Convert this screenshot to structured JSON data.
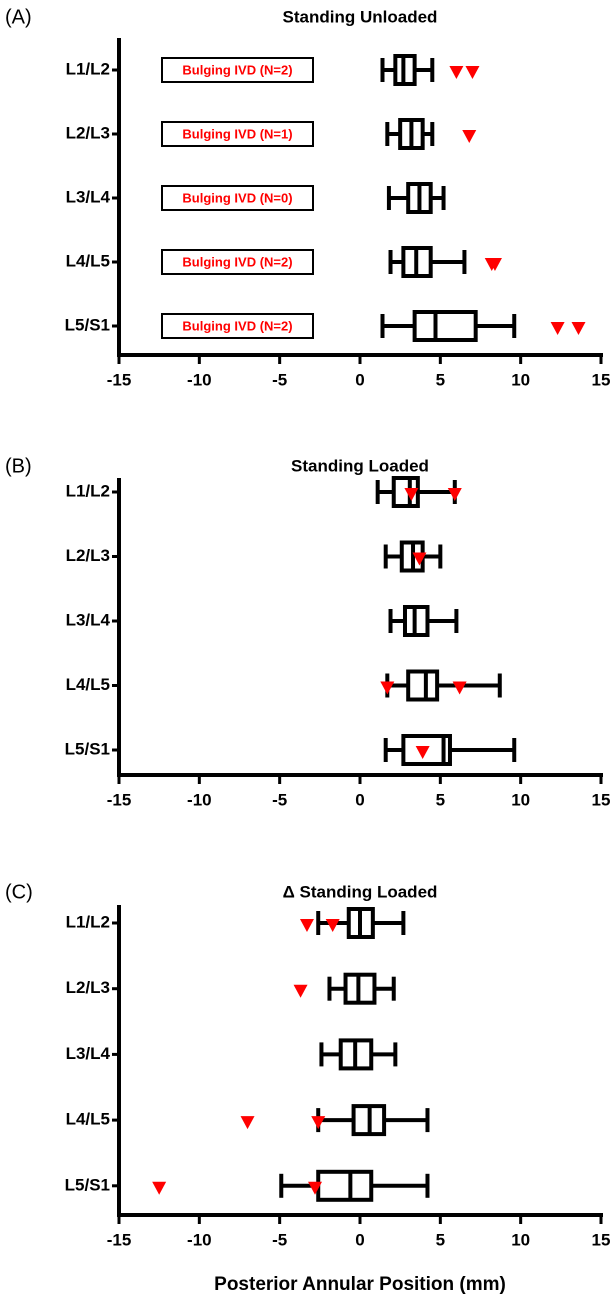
{
  "chart_data": [
    {
      "type": "box",
      "panel_label": "(A)",
      "title": "Standing Unloaded",
      "categories": [
        "L1/L2",
        "L2/L3",
        "L3/L4",
        "L4/L5",
        "L5/S1"
      ],
      "boxes": [
        {
          "min": 1.4,
          "q1": 2.2,
          "median": 2.7,
          "q3": 3.4,
          "max": 4.5,
          "outliers": [
            6.0,
            7.0
          ]
        },
        {
          "min": 1.7,
          "q1": 2.5,
          "median": 3.2,
          "q3": 3.9,
          "max": 4.5,
          "outliers": [
            6.8
          ]
        },
        {
          "min": 1.8,
          "q1": 3.0,
          "median": 3.7,
          "q3": 4.4,
          "max": 5.2,
          "outliers": []
        },
        {
          "min": 1.9,
          "q1": 2.7,
          "median": 3.5,
          "q3": 4.4,
          "max": 6.5,
          "outliers": [
            8.2,
            8.4
          ]
        },
        {
          "min": 1.4,
          "q1": 3.4,
          "median": 4.7,
          "q3": 7.2,
          "max": 9.6,
          "outliers": [
            12.3,
            13.6
          ]
        }
      ],
      "annotations": [
        "Bulging IVD (N=2)",
        "Bulging IVD (N=1)",
        "Bulging IVD (N=0)",
        "Bulging IVD (N=2)",
        "Bulging IVD (N=2)"
      ],
      "color": "#000000",
      "outlier_color": "#ff0000",
      "xlim": [
        -15,
        15
      ],
      "xticks": [
        -15,
        -10,
        -5,
        0,
        5,
        10,
        15
      ]
    },
    {
      "type": "box",
      "panel_label": "(B)",
      "title": "Standing Loaded",
      "categories": [
        "L1/L2",
        "L2/L3",
        "L3/L4",
        "L4/L5",
        "L5/S1"
      ],
      "boxes": [
        {
          "min": 1.1,
          "q1": 2.1,
          "median": 3.1,
          "q3": 3.6,
          "max": 5.9,
          "outliers": [
            3.2,
            5.9
          ]
        },
        {
          "min": 1.6,
          "q1": 2.6,
          "median": 3.3,
          "q3": 3.9,
          "max": 5.0,
          "outliers": [
            3.7
          ]
        },
        {
          "min": 1.9,
          "q1": 2.8,
          "median": 3.4,
          "q3": 4.2,
          "max": 6.0,
          "outliers": []
        },
        {
          "min": 1.7,
          "q1": 3.0,
          "median": 4.1,
          "q3": 4.8,
          "max": 8.7,
          "outliers": [
            1.7,
            6.2
          ]
        },
        {
          "min": 1.6,
          "q1": 2.7,
          "median": 5.2,
          "q3": 5.6,
          "max": 9.6,
          "outliers": [
            3.9
          ]
        }
      ],
      "color": "#000000",
      "outlier_color": "#ff0000",
      "xlim": [
        -15,
        15
      ],
      "xticks": [
        -15,
        -10,
        -5,
        0,
        5,
        10,
        15
      ]
    },
    {
      "type": "box",
      "panel_label": "(C)",
      "title": "Δ Standing Loaded",
      "categories": [
        "L1/L2",
        "L2/L3",
        "L3/L4",
        "L4/L5",
        "L5/S1"
      ],
      "boxes": [
        {
          "min": -2.6,
          "q1": -0.7,
          "median": 0.0,
          "q3": 0.8,
          "max": 2.7,
          "outliers": [
            -3.3,
            -1.7
          ]
        },
        {
          "min": -1.9,
          "q1": -0.9,
          "median": -0.1,
          "q3": 0.9,
          "max": 2.1,
          "outliers": [
            -3.7
          ]
        },
        {
          "min": -2.4,
          "q1": -1.2,
          "median": -0.3,
          "q3": 0.7,
          "max": 2.2,
          "outliers": []
        },
        {
          "min": -2.6,
          "q1": -0.4,
          "median": 0.6,
          "q3": 1.5,
          "max": 4.2,
          "outliers": [
            -7.0,
            -2.6
          ]
        },
        {
          "min": -4.9,
          "q1": -2.6,
          "median": -0.6,
          "q3": 0.7,
          "max": 4.2,
          "outliers": [
            -12.5,
            -2.8
          ]
        }
      ],
      "color": "#000000",
      "outlier_color": "#ff0000",
      "xlim": [
        -15,
        15
      ],
      "xticks": [
        -15,
        -10,
        -5,
        0,
        5,
        10,
        15
      ],
      "x_label": "Posterior Annular Position (mm)"
    }
  ]
}
